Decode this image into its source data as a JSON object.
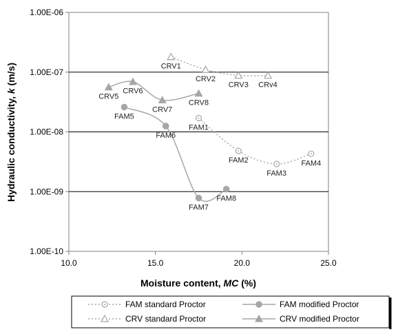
{
  "chart_data": {
    "type": "scatter",
    "xlabel_prefix": "Moisture content, ",
    "xlabel_var": "MC",
    "xlabel_suffix": " (%)",
    "ylabel_prefix": "Hydraulic conductivity, ",
    "ylabel_var": "k",
    "ylabel_suffix": " (m/s)",
    "xlim": [
      10.0,
      25.0
    ],
    "ylim": [
      1e-10,
      1e-06
    ],
    "y_scale": "log",
    "grid": "horizontal major",
    "legend_position": "bottom",
    "x_ticks": [
      {
        "value": 10,
        "label": "10.0"
      },
      {
        "value": 15,
        "label": "15.0"
      },
      {
        "value": 20,
        "label": "20.0"
      },
      {
        "value": 25,
        "label": "25.0"
      }
    ],
    "y_ticks": [
      {
        "value": 1e-10,
        "label": "1.00E-10"
      },
      {
        "value": 1e-09,
        "label": "1.00E-09"
      },
      {
        "value": 1e-08,
        "label": "1.00E-08"
      },
      {
        "value": 1e-07,
        "label": "1.00E-07"
      },
      {
        "value": 1e-06,
        "label": "1.00E-06"
      }
    ],
    "series": [
      {
        "name": "FAM standard Proctor",
        "color": "#a6a6a6",
        "line": "dotted",
        "marker": "circle-open",
        "points": [
          {
            "x": 17.5,
            "y": 1.7e-08,
            "label": "FAM1",
            "label_pos": "below"
          },
          {
            "x": 19.8,
            "y": 4.8e-09,
            "label": "FAM2",
            "label_pos": "below"
          },
          {
            "x": 22.0,
            "y": 2.9e-09,
            "label": "FAM3",
            "label_pos": "below"
          },
          {
            "x": 24.0,
            "y": 4.3e-09,
            "label": "FAM4",
            "label_pos": "below"
          }
        ]
      },
      {
        "name": "FAM modified Proctor",
        "color": "#a6a6a6",
        "line": "solid",
        "marker": "circle-filled",
        "points": [
          {
            "x": 13.2,
            "y": 2.6e-08,
            "label": "FAM5",
            "label_pos": "below"
          },
          {
            "x": 15.6,
            "y": 1.25e-08,
            "label": "FAM6",
            "label_pos": "below"
          },
          {
            "x": 17.5,
            "y": 7.8e-10,
            "label": "FAM7",
            "label_pos": "below"
          },
          {
            "x": 19.1,
            "y": 1.1e-09,
            "label": "FAM8",
            "label_pos": "below"
          }
        ]
      },
      {
        "name": "CRV standard Proctor",
        "color": "#a6a6a6",
        "line": "dotted",
        "marker": "triangle-open",
        "points": [
          {
            "x": 15.9,
            "y": 1.8e-07,
            "label": "CRV1",
            "label_pos": "below"
          },
          {
            "x": 17.9,
            "y": 1.1e-07,
            "label": "CRV2",
            "label_pos": "below"
          },
          {
            "x": 19.8,
            "y": 8.8e-08,
            "label": "CRV3",
            "label_pos": "below"
          },
          {
            "x": 21.5,
            "y": 8.8e-08,
            "label": "CRv4",
            "label_pos": "below"
          }
        ]
      },
      {
        "name": "CRV modified Proctor",
        "color": "#a6a6a6",
        "line": "solid",
        "marker": "triangle-filled",
        "points": [
          {
            "x": 12.3,
            "y": 5.6e-08,
            "label": "CRV5",
            "label_pos": "below"
          },
          {
            "x": 13.7,
            "y": 6.9e-08,
            "label": "CRV6",
            "label_pos": "below"
          },
          {
            "x": 15.4,
            "y": 3.4e-08,
            "label": "CRV7",
            "label_pos": "below"
          },
          {
            "x": 17.5,
            "y": 4.4e-08,
            "label": "CRV8",
            "label_pos": "below"
          }
        ]
      }
    ]
  }
}
